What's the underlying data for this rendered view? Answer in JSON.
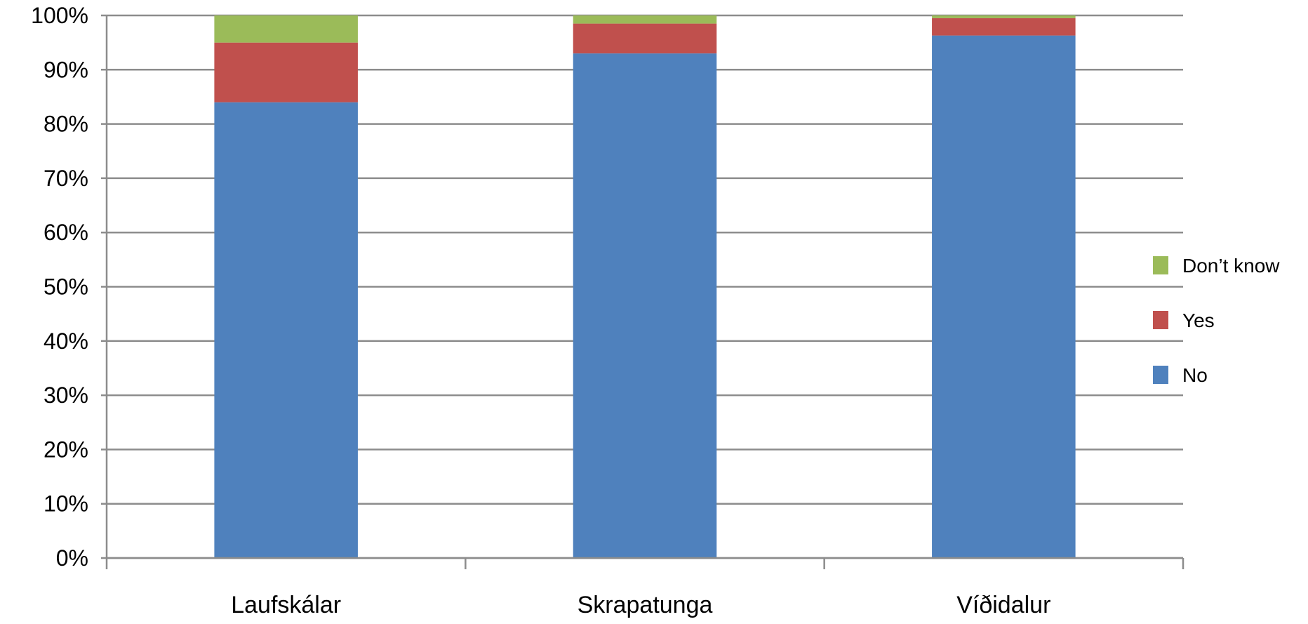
{
  "chart_data": {
    "type": "bar",
    "stacked": true,
    "normalized": true,
    "categories": [
      "Laufskálar",
      "Skrapatunga",
      "Víðidalur"
    ],
    "series": [
      {
        "name": "No",
        "color": "#4f81bd",
        "values": [
          84,
          93,
          96.3
        ]
      },
      {
        "name": "Yes",
        "color": "#c0504d",
        "values": [
          11,
          5.5,
          3.2
        ]
      },
      {
        "name": "Don’t know",
        "color": "#9bbb59",
        "values": [
          5,
          1.5,
          0.5
        ]
      }
    ],
    "y_ticks": [
      "0%",
      "10%",
      "20%",
      "30%",
      "40%",
      "50%",
      "60%",
      "70%",
      "80%",
      "90%",
      "100%"
    ],
    "ylim": [
      0,
      100
    ],
    "grid": true,
    "legend": {
      "position": "right",
      "order": [
        "Don’t know",
        "Yes",
        "No"
      ]
    },
    "title": "",
    "xlabel": "",
    "ylabel": ""
  }
}
